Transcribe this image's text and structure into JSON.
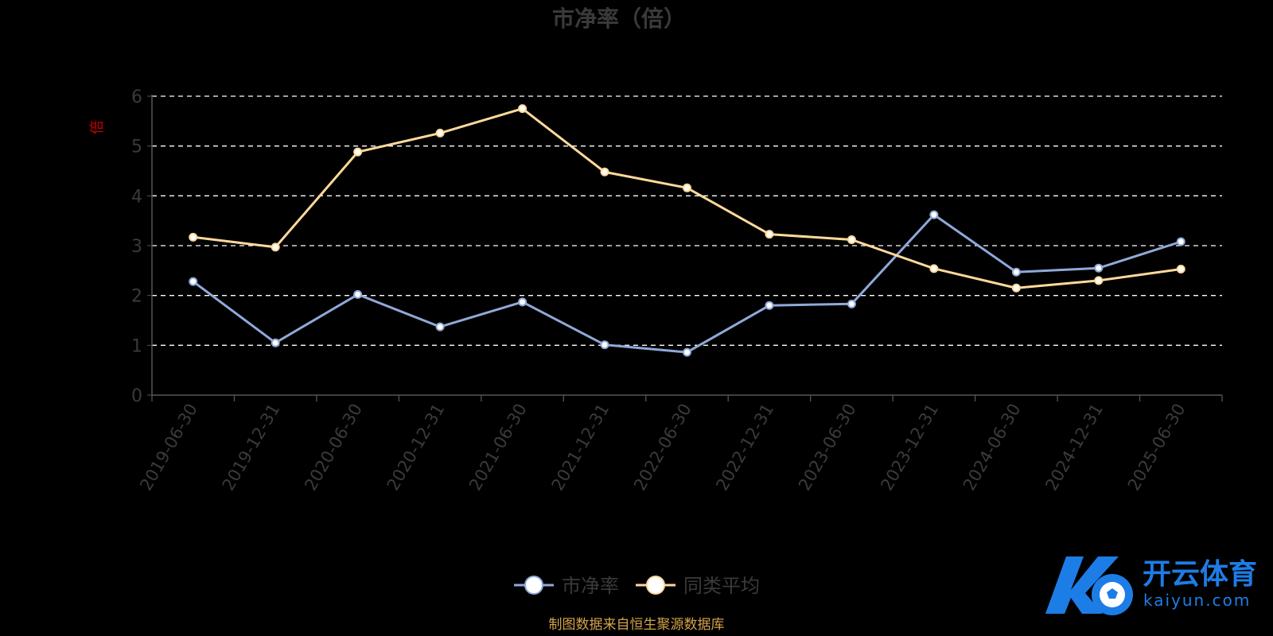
{
  "chart_data": {
    "type": "line",
    "title": "市净率（倍）",
    "ylabel": "倍",
    "categories": [
      "2019-06-30",
      "2019-12-31",
      "2020-06-30",
      "2020-12-31",
      "2021-06-30",
      "2021-12-31",
      "2022-06-30",
      "2022-12-31",
      "2023-06-30",
      "2023-12-31",
      "2024-06-30",
      "2024-12-31",
      "2025-06-30"
    ],
    "ylim": [
      0,
      6
    ],
    "yticks": [
      "0",
      "1",
      "2",
      "3",
      "4",
      "5",
      "6"
    ],
    "grid": true,
    "legend_position": "bottom-center",
    "series": [
      {
        "name": "市净率",
        "color": "#8fa9d8",
        "values": [
          2.28,
          1.05,
          2.02,
          1.37,
          1.87,
          1.01,
          0.86,
          1.8,
          1.83,
          3.62,
          2.47,
          2.55,
          3.08
        ]
      },
      {
        "name": "同类平均",
        "color": "#ffd99a",
        "values": [
          3.17,
          2.97,
          4.88,
          5.26,
          5.75,
          4.48,
          4.16,
          3.23,
          3.12,
          2.54,
          2.15,
          2.3,
          2.53
        ]
      }
    ]
  },
  "source_note": "制图数据来自恒生聚源数据库",
  "watermark": {
    "logo_text": "开云体育",
    "logo_subtext": "kaiyun.com"
  },
  "colors": {
    "background": "#000000",
    "title": "#3a3a3a",
    "axis_text": "#3a3a3a",
    "ylabel": "#cc0000",
    "grid": "#ffffff",
    "source_note": "#d4a24a",
    "logo_blue": "#1d7de6"
  }
}
